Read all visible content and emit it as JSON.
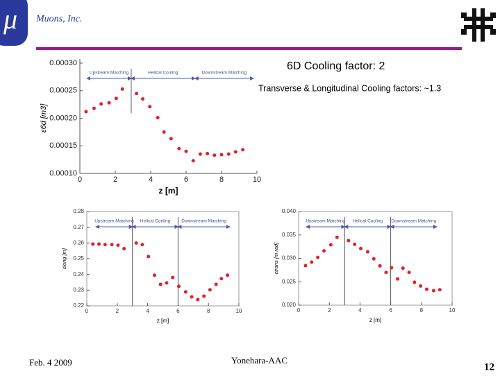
{
  "header": {
    "logo_text": "μ",
    "company": "Muons, Inc."
  },
  "notes": [
    "6D Cooling factor: 2",
    "Transverse & Longitudinal Cooling factors: ~1.3"
  ],
  "footer": {
    "date": "Feb. 4 2009",
    "author": "Yonehara-AAC",
    "page": "12"
  },
  "chart_data": [
    {
      "type": "scatter",
      "x_label": "z [m]",
      "y_label": "ε6d [m3]",
      "color": "#e0202a",
      "xlim": [
        0,
        10
      ],
      "xticks": [
        0,
        2,
        4,
        6,
        8,
        10
      ],
      "ylim": [
        0.0001,
        0.0003
      ],
      "yticks": [
        {
          "value": 0.0001,
          "label": "0.00010"
        },
        {
          "value": 0.00015,
          "label": "0.00015"
        },
        {
          "value": 0.0002,
          "label": "0.00020"
        },
        {
          "value": 0.00025,
          "label": "0.00025"
        },
        {
          "value": 0.0003,
          "label": "0.00030"
        }
      ],
      "vlines": [
        2.9
      ],
      "sections": [
        {
          "label": "Upstream Matching",
          "from": 0.4,
          "to": 2.9
        },
        {
          "label": "Helical Cooling",
          "from": 2.9,
          "to": 6.5
        },
        {
          "label": "Downstream Matching",
          "from": 6.5,
          "to": 9.8
        }
      ],
      "x": [
        0.35,
        0.8,
        1.2,
        1.65,
        2.05,
        2.4,
        3.2,
        3.55,
        3.95,
        4.4,
        4.75,
        5.15,
        5.6,
        6.0,
        6.4,
        6.8,
        7.2,
        7.6,
        8.0,
        8.4,
        8.8,
        9.2
      ],
      "values": [
        0.000212,
        0.000218,
        0.000226,
        0.000228,
        0.000236,
        0.000253,
        0.000245,
        0.000235,
        0.000221,
        0.000201,
        0.000175,
        0.000163,
        0.000145,
        0.00014,
        0.000123,
        0.000135,
        0.000136,
        0.000133,
        0.000134,
        0.000135,
        0.000139,
        0.000143
      ]
    },
    {
      "type": "scatter",
      "x_label": "z [m]",
      "y_label": "εlong [m]",
      "color": "#e0202a",
      "xlim": [
        0,
        10
      ],
      "xticks": [
        0,
        2,
        4,
        6,
        8,
        10
      ],
      "ylim": [
        0.22,
        0.28
      ],
      "yticks": [
        0.22,
        0.23,
        0.24,
        0.25,
        0.26,
        0.27,
        0.28
      ],
      "vlines": [
        3,
        6
      ],
      "sections": [
        {
          "label": "Upstream Matching",
          "from": 0.6,
          "to": 3
        },
        {
          "label": "Helical Cooling",
          "from": 3,
          "to": 6
        },
        {
          "label": "Downstream Matching",
          "from": 6,
          "to": 9.4
        }
      ],
      "x": [
        0.4,
        0.8,
        1.2,
        1.65,
        2.05,
        2.45,
        3.25,
        3.65,
        4.05,
        4.45,
        4.85,
        5.25,
        5.65,
        6.05,
        6.5,
        6.9,
        7.3,
        7.7,
        8.1,
        8.5,
        8.85,
        9.25
      ],
      "values": [
        0.2593,
        0.2593,
        0.259,
        0.259,
        0.2586,
        0.2564,
        0.26,
        0.259,
        0.2514,
        0.2395,
        0.2337,
        0.2346,
        0.2381,
        0.2324,
        0.2289,
        0.2257,
        0.224,
        0.2262,
        0.2302,
        0.2337,
        0.2373,
        0.2395
      ]
    },
    {
      "type": "scatter",
      "x_label": "z [m]",
      "y_label": "εtrans [m rad]",
      "color": "#e0202a",
      "xlim": [
        0,
        10
      ],
      "xticks": [
        0,
        2,
        4,
        6,
        8,
        10
      ],
      "ylim": [
        0.02,
        0.04
      ],
      "yticks": [
        {
          "value": 0.02,
          "label": "0.020"
        },
        {
          "value": 0.025,
          "label": "0.025"
        },
        {
          "value": 0.03,
          "label": "0.030"
        },
        {
          "value": 0.035,
          "label": "0.035"
        },
        {
          "value": 0.04,
          "label": "0.040"
        }
      ],
      "vlines": [
        3,
        6
      ],
      "sections": [
        {
          "label": "Upstream Matching",
          "from": 0.5,
          "to": 3
        },
        {
          "label": "Helical Cooling",
          "from": 3,
          "to": 6
        },
        {
          "label": "Downstream Matching",
          "from": 6,
          "to": 9.0
        }
      ],
      "x": [
        0.45,
        0.85,
        1.25,
        1.65,
        2.1,
        2.5,
        3.25,
        3.65,
        4.05,
        4.5,
        4.9,
        5.3,
        5.7,
        6.05,
        6.45,
        6.8,
        7.2,
        7.55,
        7.95,
        8.35,
        8.8,
        9.2
      ],
      "values": [
        0.02844,
        0.0292,
        0.0302,
        0.0316,
        0.0329,
        0.0345,
        0.0338,
        0.033,
        0.0321,
        0.0314,
        0.0299,
        0.0284,
        0.027,
        0.028,
        0.0256,
        0.0279,
        0.027,
        0.0249,
        0.0241,
        0.0234,
        0.0231,
        0.0233
      ]
    }
  ]
}
